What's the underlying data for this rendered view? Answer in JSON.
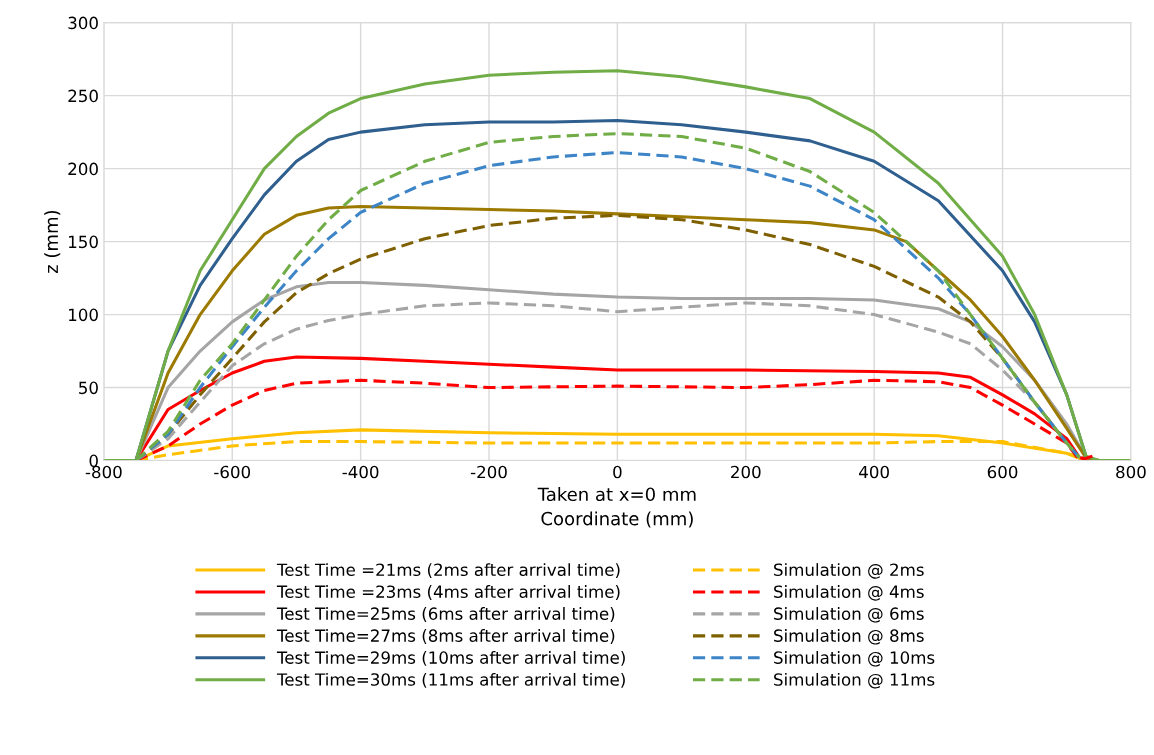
{
  "chart_data": {
    "type": "line",
    "xlabel": "Taken at x=0 mm\nCoordinate (mm)",
    "ylabel": "z (mm)",
    "xlim": [
      -800,
      800
    ],
    "xticks": [
      -800,
      -600,
      -400,
      -200,
      0,
      200,
      400,
      600,
      800
    ],
    "ylim": [
      0,
      300
    ],
    "yticks": [
      0,
      50,
      100,
      150,
      200,
      250,
      300
    ],
    "grid": true,
    "legend": "bottom",
    "series": [
      {
        "name": "Test Time =21ms (2ms after arrival time)",
        "color": "#ffc000",
        "line_style": "solid",
        "x": [
          -800,
          -750,
          -700,
          -600,
          -500,
          -400,
          -200,
          0,
          200,
          400,
          500,
          600,
          700,
          730,
          750,
          800
        ],
        "values": [
          0,
          0,
          10,
          15,
          19,
          21,
          19,
          18,
          18,
          18,
          17,
          12,
          5,
          0,
          0,
          0
        ]
      },
      {
        "name": "Test Time =23ms (4ms after arrival time)",
        "color": "#ff0000",
        "line_style": "solid",
        "x": [
          -800,
          -750,
          -700,
          -650,
          -600,
          -550,
          -500,
          -400,
          -300,
          -200,
          -100,
          0,
          200,
          400,
          500,
          550,
          600,
          650,
          700,
          720,
          750,
          800
        ],
        "values": [
          0,
          0,
          35,
          48,
          60,
          68,
          71,
          70,
          68,
          66,
          64,
          62,
          62,
          61,
          60,
          57,
          45,
          32,
          15,
          2,
          0,
          0
        ]
      },
      {
        "name": "Test Time=25ms (6ms after arrival time)",
        "color": "#a5a5a5",
        "line_style": "solid",
        "x": [
          -800,
          -750,
          -700,
          -650,
          -600,
          -550,
          -500,
          -450,
          -400,
          -300,
          -200,
          -100,
          0,
          100,
          200,
          300,
          400,
          500,
          550,
          600,
          650,
          700,
          730,
          750,
          800
        ],
        "values": [
          0,
          0,
          50,
          75,
          95,
          110,
          119,
          122,
          122,
          120,
          117,
          114,
          112,
          111,
          111,
          111,
          110,
          104,
          95,
          78,
          55,
          25,
          2,
          0,
          0
        ]
      },
      {
        "name": "Test Time=27ms (8ms after arrival time)",
        "color": "#9c7a00",
        "line_style": "solid",
        "x": [
          -800,
          -750,
          -700,
          -650,
          -600,
          -550,
          -500,
          -450,
          -400,
          -300,
          -200,
          -100,
          0,
          100,
          200,
          300,
          400,
          450,
          500,
          550,
          600,
          650,
          700,
          730,
          750,
          800
        ],
        "values": [
          0,
          0,
          60,
          100,
          130,
          155,
          168,
          173,
          174,
          173,
          172,
          171,
          169,
          167,
          165,
          163,
          158,
          150,
          130,
          110,
          85,
          55,
          22,
          2,
          0,
          0
        ]
      },
      {
        "name": "Test Time=29ms (10ms after arrival time)",
        "color": "#2e5f8f",
        "line_style": "solid",
        "x": [
          -800,
          -750,
          -700,
          -650,
          -600,
          -550,
          -500,
          -450,
          -400,
          -300,
          -200,
          -100,
          0,
          100,
          200,
          300,
          400,
          500,
          600,
          650,
          700,
          730
        ],
        "values": [
          0,
          0,
          75,
          120,
          152,
          182,
          205,
          220,
          225,
          230,
          232,
          232,
          233,
          230,
          225,
          219,
          205,
          178,
          130,
          95,
          45,
          3
        ]
      },
      {
        "name": "Test Time=30ms (11ms after arrival time)",
        "color": "#70ad47",
        "line_style": "solid",
        "x": [
          -800,
          -750,
          -700,
          -650,
          -600,
          -550,
          -500,
          -450,
          -400,
          -300,
          -200,
          -100,
          0,
          100,
          200,
          300,
          400,
          500,
          600,
          650,
          700,
          730,
          750,
          800
        ],
        "values": [
          0,
          0,
          75,
          130,
          165,
          200,
          222,
          238,
          248,
          258,
          264,
          266,
          267,
          263,
          256,
          248,
          225,
          190,
          140,
          100,
          45,
          3,
          0,
          0
        ]
      },
      {
        "name": "Simulation @ 2ms",
        "color": "#ffc000",
        "line_style": "dashed",
        "x": [
          -750,
          -700,
          -600,
          -500,
          -400,
          -200,
          0,
          200,
          400,
          500,
          600,
          700,
          730
        ],
        "values": [
          0,
          4,
          10,
          13,
          13,
          12,
          12,
          12,
          12,
          13,
          13,
          5,
          0
        ]
      },
      {
        "name": "Simulation @ 4ms",
        "color": "#ff0000",
        "line_style": "dashed",
        "x": [
          -750,
          -700,
          -650,
          -600,
          -550,
          -500,
          -400,
          -300,
          -200,
          0,
          200,
          300,
          400,
          500,
          550,
          600,
          650,
          700,
          720,
          740
        ],
        "values": [
          0,
          10,
          25,
          38,
          48,
          53,
          55,
          53,
          50,
          51,
          50,
          52,
          55,
          54,
          50,
          38,
          25,
          12,
          0,
          3
        ]
      },
      {
        "name": "Simulation @ 6ms",
        "color": "#a5a5a5",
        "line_style": "dashed",
        "x": [
          -750,
          -700,
          -650,
          -600,
          -550,
          -500,
          -450,
          -400,
          -300,
          -200,
          -100,
          0,
          100,
          200,
          300,
          400,
          500,
          550,
          600,
          650,
          700,
          720
        ],
        "values": [
          0,
          15,
          40,
          65,
          80,
          90,
          96,
          100,
          106,
          108,
          106,
          102,
          105,
          108,
          106,
          100,
          88,
          80,
          62,
          40,
          12,
          2
        ]
      },
      {
        "name": "Simulation @ 8ms",
        "color": "#7f6000",
        "line_style": "dashed",
        "x": [
          -750,
          -700,
          -650,
          -600,
          -550,
          -500,
          -450,
          -400,
          -300,
          -200,
          -100,
          0,
          100,
          200,
          300,
          400,
          500,
          550,
          600,
          650,
          700,
          720
        ],
        "values": [
          0,
          18,
          45,
          70,
          95,
          115,
          128,
          138,
          152,
          161,
          166,
          168,
          165,
          158,
          148,
          133,
          112,
          95,
          70,
          40,
          12,
          2
        ]
      },
      {
        "name": "Simulation @ 10ms",
        "color": "#3d85c6",
        "line_style": "dashed",
        "x": [
          -750,
          -700,
          -650,
          -600,
          -550,
          -500,
          -450,
          -400,
          -300,
          -200,
          -100,
          0,
          100,
          200,
          300,
          400,
          500,
          550,
          600,
          650,
          700,
          720
        ],
        "values": [
          0,
          18,
          50,
          78,
          105,
          130,
          152,
          170,
          190,
          202,
          208,
          211,
          208,
          200,
          188,
          165,
          125,
          100,
          70,
          40,
          12,
          2
        ]
      },
      {
        "name": "Simulation @ 11ms",
        "color": "#70ad47",
        "line_style": "dashed",
        "x": [
          -750,
          -700,
          -650,
          -600,
          -550,
          -500,
          -450,
          -400,
          -300,
          -200,
          -100,
          0,
          100,
          200,
          300,
          400,
          500,
          550,
          600,
          650,
          700,
          720
        ],
        "values": [
          0,
          20,
          55,
          80,
          110,
          140,
          165,
          185,
          205,
          218,
          222,
          224,
          222,
          214,
          198,
          170,
          130,
          100,
          70,
          40,
          12,
          2
        ]
      }
    ]
  }
}
